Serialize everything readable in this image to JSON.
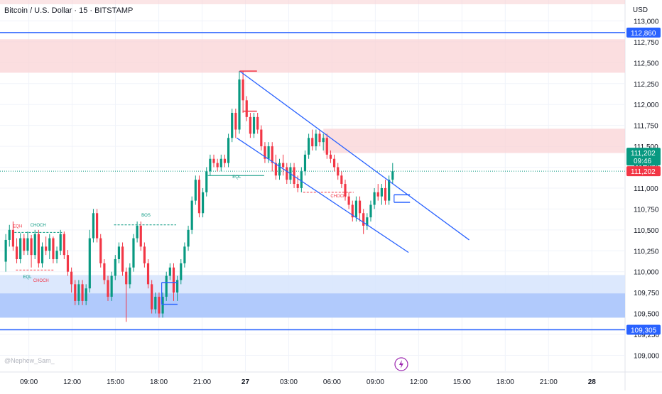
{
  "header": {
    "title": "Bitcoin / U.S. Dollar · 15 · BITSTAMP",
    "currency": "USD"
  },
  "watermark": "@Nephew_Sam_",
  "colors": {
    "up": "#089981",
    "down": "#f23645",
    "line": "#2962ff",
    "supply_zone": "#f9d3d6",
    "demand_zone": "#bcd3fb",
    "price_tag": "#f23645",
    "countdown_tag": "#089981"
  },
  "chart_data": {
    "type": "candlestick",
    "symbol": "Bitcoin / U.S. Dollar",
    "interval": "15",
    "exchange": "BITSTAMP",
    "y_axis": {
      "range": [
        108800,
        113250
      ],
      "ticks": [
        "113,000",
        "112,750",
        "112,500",
        "112,250",
        "112,000",
        "111,750",
        "111,500",
        "111,250",
        "111,000",
        "110,750",
        "110,500",
        "110,250",
        "110,000",
        "109,750",
        "109,500",
        "109,250",
        "109,000"
      ],
      "tick_values": [
        113000,
        112750,
        112500,
        112250,
        112000,
        111750,
        111500,
        111250,
        111000,
        110750,
        110500,
        110250,
        110000,
        109750,
        109500,
        109250,
        109000
      ]
    },
    "x_axis": {
      "ticks": [
        "09:00",
        "12:00",
        "15:00",
        "18:00",
        "21:00",
        "27",
        "03:00",
        "06:00",
        "09:00",
        "12:00",
        "15:00",
        "18:00",
        "21:00",
        "28"
      ],
      "tick_hours": [
        9,
        12,
        15,
        18,
        21,
        24,
        27,
        30,
        33,
        36,
        39,
        42,
        45,
        48
      ],
      "range_hours": [
        7.0,
        50.3
      ]
    },
    "candles": [
      [
        110120,
        110380,
        110000,
        110450
      ],
      [
        110380,
        110500,
        110300,
        110560
      ],
      [
        110500,
        110300,
        110250,
        110600
      ],
      [
        110300,
        110150,
        110100,
        110400
      ],
      [
        110150,
        110400,
        110100,
        110460
      ],
      [
        110400,
        110250,
        110200,
        110450
      ],
      [
        110250,
        110400,
        110200,
        110480
      ],
      [
        110400,
        110200,
        110050,
        110440
      ],
      [
        110200,
        110450,
        110150,
        110500
      ],
      [
        110450,
        110100,
        110050,
        110500
      ],
      [
        110100,
        110300,
        110050,
        110350
      ],
      [
        110300,
        110250,
        110200,
        110420
      ],
      [
        110250,
        110400,
        110150,
        110450
      ],
      [
        110400,
        110150,
        110100,
        110420
      ],
      [
        110150,
        110250,
        110100,
        110300
      ],
      [
        110250,
        110450,
        110200,
        110500
      ],
      [
        110450,
        110200,
        110150,
        110480
      ],
      [
        110200,
        110000,
        109950,
        110260
      ],
      [
        110000,
        109850,
        109750,
        110050
      ],
      [
        109850,
        109650,
        109600,
        109900
      ],
      [
        109650,
        109850,
        109600,
        109900
      ],
      [
        109850,
        109650,
        109600,
        109900
      ],
      [
        109650,
        109800,
        109600,
        109850
      ],
      [
        109800,
        110400,
        109750,
        110500
      ],
      [
        110400,
        110700,
        110350,
        110750
      ],
      [
        110700,
        110400,
        110350,
        110750
      ],
      [
        110400,
        110100,
        110050,
        110450
      ],
      [
        110100,
        109900,
        109850,
        110150
      ],
      [
        109900,
        109700,
        109650,
        109950
      ],
      [
        109700,
        109950,
        109650,
        110000
      ],
      [
        109950,
        110150,
        109900,
        110200
      ],
      [
        110150,
        110300,
        110100,
        110350
      ],
      [
        110300,
        110000,
        109950,
        110350
      ],
      [
        110000,
        109850,
        109400,
        110050
      ],
      [
        109850,
        110050,
        109800,
        110100
      ],
      [
        110050,
        110400,
        110000,
        110450
      ],
      [
        110400,
        110550,
        110350,
        110600
      ],
      [
        110550,
        110300,
        110250,
        110600
      ],
      [
        110300,
        110100,
        110050,
        110350
      ],
      [
        110100,
        109850,
        109800,
        110150
      ],
      [
        109850,
        109550,
        109500,
        109900
      ],
      [
        109550,
        109700,
        109500,
        109750
      ],
      [
        109700,
        109500,
        109450,
        109750
      ],
      [
        109500,
        109700,
        109450,
        109750
      ],
      [
        109700,
        109950,
        109650,
        110000
      ],
      [
        109950,
        110050,
        109900,
        110100
      ],
      [
        110050,
        109750,
        109650,
        110100
      ],
      [
        109750,
        109900,
        109650,
        109950
      ],
      [
        109900,
        110100,
        109850,
        110150
      ],
      [
        110100,
        110300,
        110050,
        110350
      ],
      [
        110300,
        110500,
        110250,
        110550
      ],
      [
        110500,
        110850,
        110450,
        110900
      ],
      [
        110850,
        111100,
        110800,
        111150
      ],
      [
        111100,
        110700,
        110650,
        111150
      ],
      [
        110700,
        110950,
        110650,
        111000
      ],
      [
        110950,
        111200,
        110900,
        111250
      ],
      [
        111200,
        111350,
        111150,
        111400
      ],
      [
        111350,
        111300,
        111250,
        111400
      ],
      [
        111300,
        111250,
        111200,
        111350
      ],
      [
        111250,
        111350,
        111200,
        111400
      ],
      [
        111350,
        111300,
        111250,
        111400
      ],
      [
        111300,
        111600,
        111250,
        111650
      ],
      [
        111600,
        111900,
        111550,
        111950
      ],
      [
        111900,
        111700,
        111600,
        111950
      ],
      [
        111700,
        112300,
        111650,
        112400
      ],
      [
        112300,
        112050,
        111900,
        112400
      ],
      [
        112050,
        111850,
        111800,
        112100
      ],
      [
        111850,
        111650,
        111600,
        111900
      ],
      [
        111650,
        111850,
        111600,
        111900
      ],
      [
        111850,
        111700,
        111650,
        111900
      ],
      [
        111700,
        111500,
        111450,
        111750
      ],
      [
        111500,
        111350,
        111300,
        111550
      ],
      [
        111350,
        111500,
        111300,
        111550
      ],
      [
        111500,
        111300,
        111200,
        111550
      ],
      [
        111300,
        111150,
        111100,
        111400
      ],
      [
        111150,
        111300,
        111100,
        111350
      ],
      [
        111300,
        111250,
        111150,
        111400
      ],
      [
        111250,
        111100,
        111050,
        111300
      ],
      [
        111100,
        111250,
        111050,
        111300
      ],
      [
        111250,
        111050,
        111000,
        111300
      ],
      [
        111050,
        111000,
        110950,
        111150
      ],
      [
        111000,
        111200,
        110950,
        111250
      ],
      [
        111200,
        111400,
        111150,
        111450
      ],
      [
        111400,
        111600,
        111350,
        111650
      ],
      [
        111600,
        111500,
        111450,
        111700
      ],
      [
        111500,
        111650,
        111450,
        111700
      ],
      [
        111650,
        111550,
        111500,
        111700
      ],
      [
        111550,
        111600,
        111450,
        111650
      ],
      [
        111600,
        111400,
        111350,
        111650
      ],
      [
        111400,
        111350,
        111300,
        111450
      ],
      [
        111350,
        111250,
        111200,
        111400
      ],
      [
        111250,
        111150,
        111100,
        111300
      ],
      [
        111150,
        111050,
        111000,
        111200
      ],
      [
        111050,
        110900,
        110850,
        111100
      ],
      [
        110900,
        110800,
        110750,
        110950
      ],
      [
        110800,
        110650,
        110600,
        110850
      ],
      [
        110650,
        110850,
        110600,
        110900
      ],
      [
        110850,
        110700,
        110600,
        110900
      ],
      [
        110700,
        110550,
        110450,
        110750
      ],
      [
        110550,
        110650,
        110500,
        110700
      ],
      [
        110650,
        110800,
        110600,
        110850
      ],
      [
        110800,
        110950,
        110750,
        111000
      ],
      [
        110950,
        110900,
        110850,
        111050
      ],
      [
        110900,
        111000,
        110800,
        111050
      ],
      [
        111000,
        110850,
        110800,
        111100
      ],
      [
        110850,
        111100,
        110800,
        111150
      ],
      [
        111100,
        111202,
        111050,
        111300
      ]
    ],
    "zones": [
      {
        "kind": "supply",
        "y_top": 112780,
        "y_bottom": 112380,
        "x_from_hour": 7.0,
        "x_to_hour": 50.3
      },
      {
        "kind": "supply",
        "y_top": 111710,
        "y_bottom": 111420,
        "x_from_hour": 29.4,
        "x_to_hour": 50.3
      },
      {
        "kind": "demand",
        "y_top": 109960,
        "y_bottom": 109450,
        "x_from_hour": 7.0,
        "x_to_hour": 50.3
      },
      {
        "kind": "demand-strong",
        "y_top": 109740,
        "y_bottom": 109450,
        "x_from_hour": 7.0,
        "x_to_hour": 50.3
      }
    ],
    "levels": [
      {
        "value": 112860,
        "label": "112,860"
      },
      {
        "value": 109305,
        "label": "109,305"
      }
    ],
    "trend_channel": [
      {
        "from": [
          23.6,
          112400
        ],
        "to": [
          39.5,
          110380
        ]
      },
      {
        "from": [
          23.4,
          111600
        ],
        "to": [
          35.3,
          110230
        ]
      }
    ],
    "structure_labels": [
      {
        "text": "EQH",
        "hour": 7.9,
        "price": 110530,
        "color": "#f23645"
      },
      {
        "text": "CHOCH",
        "hour": 9.1,
        "price": 110540,
        "color": "#089981"
      },
      {
        "text": "EQL",
        "hour": 8.6,
        "price": 109920,
        "color": "#089981"
      },
      {
        "text": "CHOCH",
        "hour": 9.3,
        "price": 109880,
        "color": "#f23645"
      },
      {
        "text": "BOS",
        "hour": 16.8,
        "price": 110660,
        "color": "#089981"
      },
      {
        "text": "EQL",
        "hour": 23.1,
        "price": 111120,
        "color": "#089981"
      },
      {
        "text": "CHOCH",
        "hour": 29.9,
        "price": 110890,
        "color": "#f23645"
      }
    ],
    "structure_lines": [
      {
        "y": 110470,
        "from_hour": 8.0,
        "to_hour": 11.3,
        "color": "#089981",
        "dashed": true
      },
      {
        "y": 110020,
        "from_hour": 8.1,
        "to_hour": 10.7,
        "color": "#f23645",
        "dashed": true
      },
      {
        "y": 110560,
        "from_hour": 14.9,
        "to_hour": 19.2,
        "color": "#089981",
        "dashed": true
      },
      {
        "y": 111150,
        "from_hour": 21.4,
        "to_hour": 25.3,
        "color": "#089981",
        "dashed": false
      },
      {
        "y": 110950,
        "from_hour": 28.0,
        "to_hour": 31.5,
        "color": "#f23645",
        "dashed": true
      }
    ],
    "price_markers": [
      {
        "hour": 23.6,
        "price": 112400,
        "color": "#f23645",
        "len": 1.2
      },
      {
        "hour": 23.8,
        "price": 111920,
        "color": "#f23645",
        "len": 1.0
      },
      {
        "hour": 18.2,
        "price": 109870,
        "color": "#2962ff",
        "len": 1.1
      },
      {
        "hour": 18.2,
        "price": 109610,
        "color": "#2962ff",
        "len": 1.1
      },
      {
        "hour": 34.3,
        "price": 110920,
        "color": "#2962ff",
        "len": 1.1
      },
      {
        "hour": 34.3,
        "price": 110830,
        "color": "#2962ff",
        "len": 1.1
      }
    ],
    "current_price": {
      "value": 111202,
      "label": "111,202",
      "countdown": "09:46"
    },
    "time_range_hours": [
      7.4,
      34.2
    ],
    "grid": true
  }
}
